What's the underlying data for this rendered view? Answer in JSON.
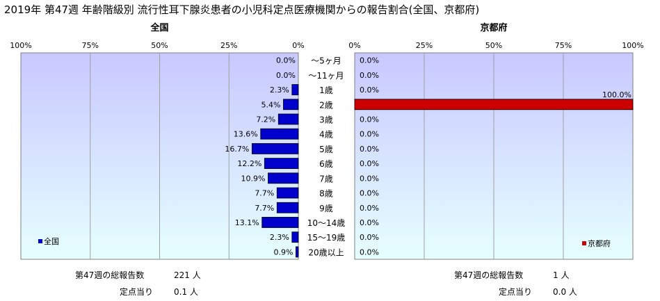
{
  "title": "2019年 第47週 年齢階級別 流行性耳下腺炎患者の小児科定点医療機関からの報告割合(全国、京都府)",
  "colors": {
    "national_bar": "#0000cc",
    "kyoto_bar": "#cc0000",
    "plot_bg_top": "#c8c8ff",
    "plot_bg_bottom": "#e6ffff"
  },
  "chart_data": [
    {
      "type": "bar",
      "orientation": "horizontal-reversed",
      "panel_title": "全国",
      "legend": "全国",
      "legend_position": "bottom-left",
      "xlim": [
        0,
        100
      ],
      "tick_labels": [
        "100%",
        "75%",
        "50%",
        "25%",
        "0%"
      ],
      "categories": [
        "～5ヶ月",
        "～11ヶ月",
        "1歳",
        "2歳",
        "3歳",
        "4歳",
        "5歳",
        "6歳",
        "7歳",
        "8歳",
        "9歳",
        "10～14歳",
        "15～19歳",
        "20歳以上"
      ],
      "values": [
        0.0,
        0.0,
        2.3,
        5.4,
        7.2,
        13.6,
        16.7,
        12.2,
        10.9,
        7.7,
        7.7,
        13.1,
        2.3,
        0.9
      ],
      "value_labels": [
        "0.0%",
        "0.0%",
        "2.3%",
        "5.4%",
        "7.2%",
        "13.6%",
        "16.7%",
        "12.2%",
        "10.9%",
        "7.7%",
        "7.7%",
        "13.1%",
        "2.3%",
        "0.9%"
      ],
      "grid": true
    },
    {
      "type": "bar",
      "orientation": "horizontal",
      "panel_title": "京都府",
      "legend": "京都府",
      "legend_position": "bottom-right",
      "xlim": [
        0,
        100
      ],
      "tick_labels": [
        "0%",
        "25%",
        "50%",
        "75%",
        "100%"
      ],
      "categories": [
        "～5ヶ月",
        "～11ヶ月",
        "1歳",
        "2歳",
        "3歳",
        "4歳",
        "5歳",
        "6歳",
        "7歳",
        "8歳",
        "9歳",
        "10～14歳",
        "15～19歳",
        "20歳以上"
      ],
      "values": [
        0.0,
        0.0,
        0.0,
        100.0,
        0.0,
        0.0,
        0.0,
        0.0,
        0.0,
        0.0,
        0.0,
        0.0,
        0.0,
        0.0
      ],
      "value_labels": [
        "0.0%",
        "0.0%",
        "0.0%",
        "100.0%",
        "0.0%",
        "0.0%",
        "0.0%",
        "0.0%",
        "0.0%",
        "0.0%",
        "0.0%",
        "0.0%",
        "0.0%",
        "0.0%"
      ],
      "grid": true
    }
  ],
  "footer": {
    "national": {
      "total_label": "第47週の総報告数",
      "total_value": "221 人",
      "per_label": "定点当り",
      "per_value": "0.1 人"
    },
    "kyoto": {
      "total_label": "第47週の総報告数",
      "total_value": "1 人",
      "per_label": "定点当り",
      "per_value": "0.0 人"
    }
  }
}
